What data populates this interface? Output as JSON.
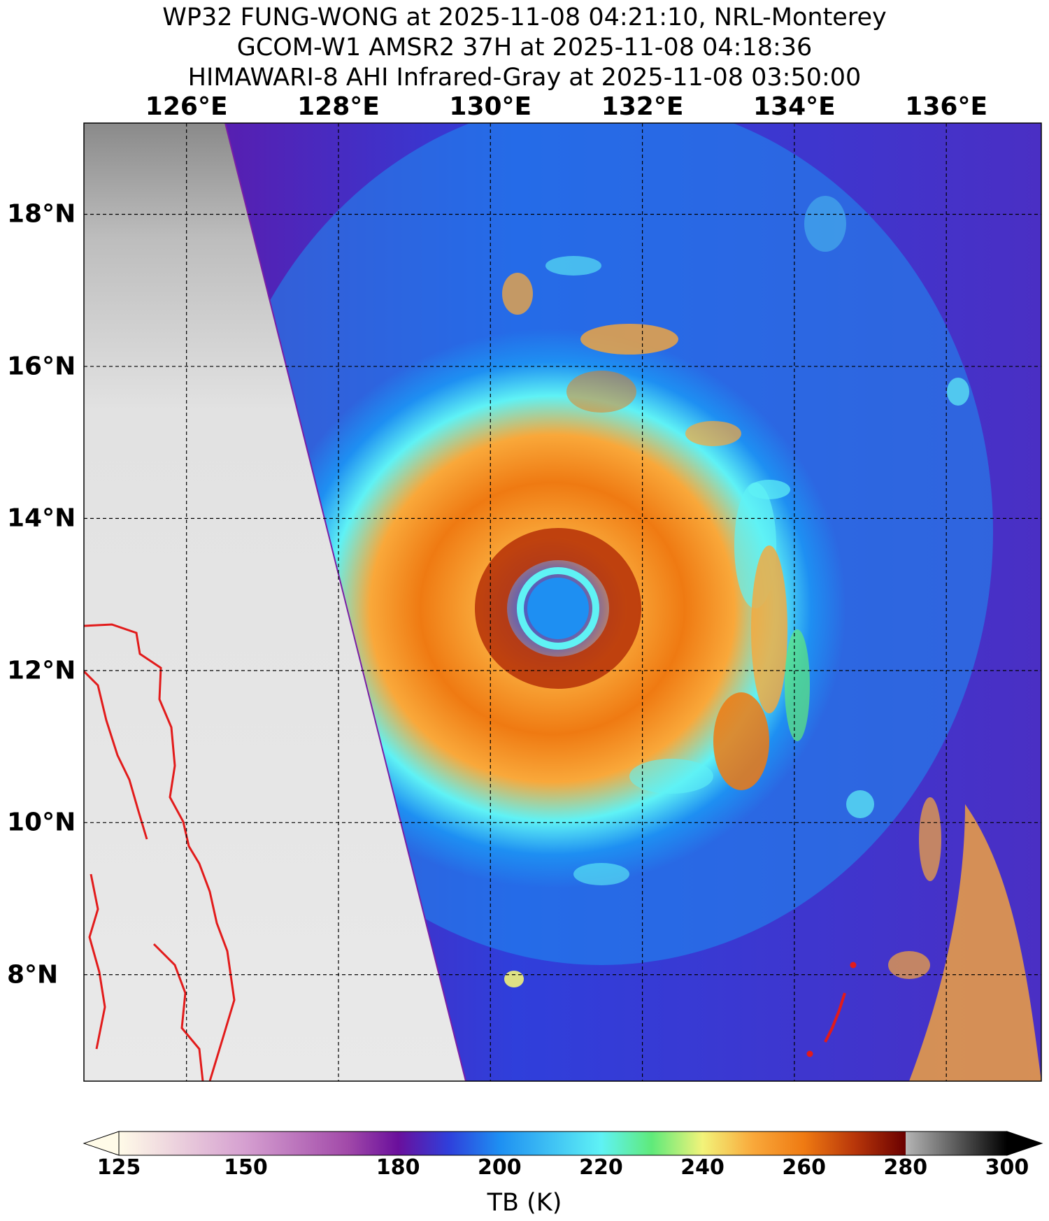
{
  "titles": [
    "WP32 FUNG-WONG at 2025-11-08 04:21:10, NRL-Monterey",
    "GCOM-W1 AMSR2 37H at 2025-11-08 04:18:36",
    "HIMAWARI-8 AHI Infrared-Gray at 2025-11-08 03:50:00"
  ],
  "map": {
    "lon_range": [
      124.65,
      137.25
    ],
    "lat_range": [
      6.6,
      19.2
    ],
    "lon_ticks": [
      {
        "value": 126,
        "label": "126°E"
      },
      {
        "value": 128,
        "label": "128°E"
      },
      {
        "value": 130,
        "label": "130°E"
      },
      {
        "value": 132,
        "label": "132°E"
      },
      {
        "value": 134,
        "label": "134°E"
      },
      {
        "value": 136,
        "label": "136°E"
      }
    ],
    "lat_ticks": [
      {
        "value": 18,
        "label": "18°N"
      },
      {
        "value": 16,
        "label": "16°N"
      },
      {
        "value": 14,
        "label": "14°N"
      },
      {
        "value": 12,
        "label": "12°N"
      },
      {
        "value": 10,
        "label": "10°N"
      },
      {
        "value": 8,
        "label": "8°N"
      }
    ],
    "gridlines": "dashed-black",
    "storm_center": {
      "lon": 131.0,
      "lat": 12.7
    },
    "eye_tb": 205,
    "swath_edge": [
      {
        "lon": 126.5,
        "lat": 19.2
      },
      {
        "lon": 129.7,
        "lat": 6.6
      }
    ],
    "coastline_color": "#e21b1b",
    "ir_background_color": "#e6e6e6"
  },
  "colorbar": {
    "label": "TB (K)",
    "range": [
      125,
      300
    ],
    "ticks": [
      {
        "value": 125,
        "label": "125"
      },
      {
        "value": 150,
        "label": "150"
      },
      {
        "value": 180,
        "label": "180"
      },
      {
        "value": 200,
        "label": "200"
      },
      {
        "value": 220,
        "label": "220"
      },
      {
        "value": 240,
        "label": "240"
      },
      {
        "value": 260,
        "label": "260"
      },
      {
        "value": 280,
        "label": "280"
      },
      {
        "value": 300,
        "label": "300"
      }
    ],
    "color_stops": [
      {
        "value": 125,
        "color": "#fffbe8"
      },
      {
        "value": 150,
        "color": "#d59fd0"
      },
      {
        "value": 170,
        "color": "#a24aa9"
      },
      {
        "value": 180,
        "color": "#6a0f9c"
      },
      {
        "value": 190,
        "color": "#2f3fdb"
      },
      {
        "value": 200,
        "color": "#1e8ff2"
      },
      {
        "value": 220,
        "color": "#5ff2f5"
      },
      {
        "value": 230,
        "color": "#5fea7a"
      },
      {
        "value": 240,
        "color": "#f2f37a"
      },
      {
        "value": 250,
        "color": "#f9a83a"
      },
      {
        "value": 260,
        "color": "#ef7a12"
      },
      {
        "value": 270,
        "color": "#b8360a"
      },
      {
        "value": 280,
        "color": "#6a0000"
      },
      {
        "value": 280,
        "color": "#b5b5b5"
      },
      {
        "value": 300,
        "color": "#000000"
      }
    ]
  }
}
